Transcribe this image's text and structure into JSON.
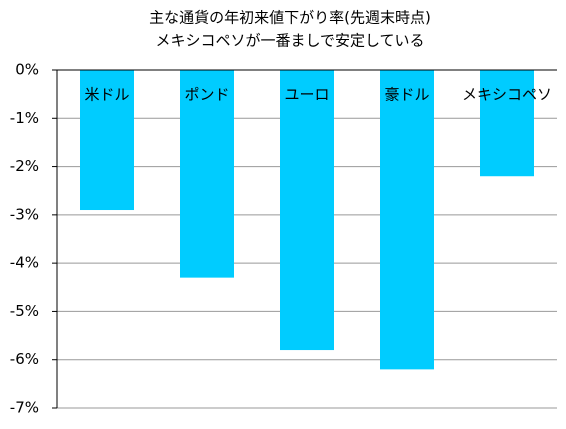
{
  "chart_data": {
    "type": "bar",
    "title": "主な通貨の年初来値下がり率(先週末時点)",
    "subtitle": "メキシコペソが一番ましで安定している",
    "categories": [
      "米ドル",
      "ポンド",
      "ユーロ",
      "豪ドル",
      "メキシコペソ"
    ],
    "values": [
      -2.9,
      -4.3,
      -5.8,
      -6.2,
      -2.2
    ],
    "color": "#00ccff",
    "ylim": [
      -7,
      0
    ],
    "yticks": [
      {
        "value": 0,
        "label": "0%"
      },
      {
        "value": -1,
        "label": "-1%"
      },
      {
        "value": -2,
        "label": "-2%"
      },
      {
        "value": -3,
        "label": "-3%"
      },
      {
        "value": -4,
        "label": "-4%"
      },
      {
        "value": -5,
        "label": "-5%"
      },
      {
        "value": -6,
        "label": "-6%"
      },
      {
        "value": -7,
        "label": "-7%"
      }
    ],
    "grid": true
  }
}
